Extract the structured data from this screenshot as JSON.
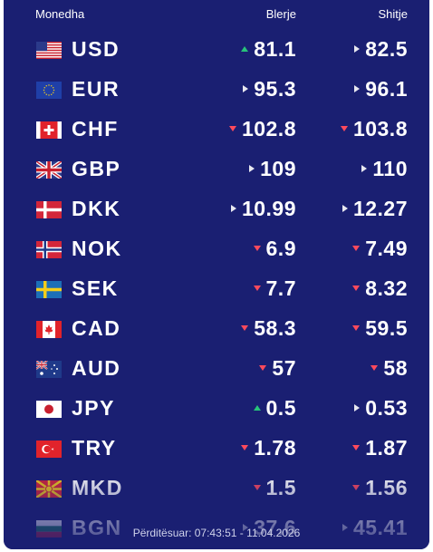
{
  "header": {
    "name": "Monedha",
    "buy": "Blerje",
    "sell": "Shitje"
  },
  "rows": [
    {
      "code": "USD",
      "flag_icon": "us-flag-icon",
      "buy": "81.1",
      "buy_trend": "up",
      "sell": "82.5",
      "sell_trend": "same"
    },
    {
      "code": "EUR",
      "flag_icon": "eu-flag-icon",
      "buy": "95.3",
      "buy_trend": "same",
      "sell": "96.1",
      "sell_trend": "same"
    },
    {
      "code": "CHF",
      "flag_icon": "ch-flag-icon",
      "buy": "102.8",
      "buy_trend": "down",
      "sell": "103.8",
      "sell_trend": "down"
    },
    {
      "code": "GBP",
      "flag_icon": "gb-flag-icon",
      "buy": "109",
      "buy_trend": "same",
      "sell": "110",
      "sell_trend": "same"
    },
    {
      "code": "DKK",
      "flag_icon": "dk-flag-icon",
      "buy": "10.99",
      "buy_trend": "same",
      "sell": "12.27",
      "sell_trend": "same"
    },
    {
      "code": "NOK",
      "flag_icon": "no-flag-icon",
      "buy": "6.9",
      "buy_trend": "down",
      "sell": "7.49",
      "sell_trend": "down"
    },
    {
      "code": "SEK",
      "flag_icon": "se-flag-icon",
      "buy": "7.7",
      "buy_trend": "down",
      "sell": "8.32",
      "sell_trend": "down"
    },
    {
      "code": "CAD",
      "flag_icon": "ca-flag-icon",
      "buy": "58.3",
      "buy_trend": "down",
      "sell": "59.5",
      "sell_trend": "down"
    },
    {
      "code": "AUD",
      "flag_icon": "au-flag-icon",
      "buy": "57",
      "buy_trend": "down",
      "sell": "58",
      "sell_trend": "down"
    },
    {
      "code": "JPY",
      "flag_icon": "jp-flag-icon",
      "buy": "0.5",
      "buy_trend": "up",
      "sell": "0.53",
      "sell_trend": "same"
    },
    {
      "code": "TRY",
      "flag_icon": "tr-flag-icon",
      "buy": "1.78",
      "buy_trend": "down",
      "sell": "1.87",
      "sell_trend": "down"
    },
    {
      "code": "MKD",
      "flag_icon": "mk-flag-icon",
      "buy": "1.5",
      "buy_trend": "down",
      "sell": "1.56",
      "sell_trend": "down"
    },
    {
      "code": "BGN",
      "flag_icon": "bg-flag-icon",
      "buy": "37.6",
      "buy_trend": "same",
      "sell": "45.41",
      "sell_trend": "same"
    }
  ],
  "footer": {
    "updated": "Përditësuar: 07:43:51 - 11.04.2026"
  },
  "colors": {
    "panel": "#1a1f72",
    "up": "#27c37a",
    "down": "#ff4a5c",
    "neutral": "#e8e8f0"
  }
}
